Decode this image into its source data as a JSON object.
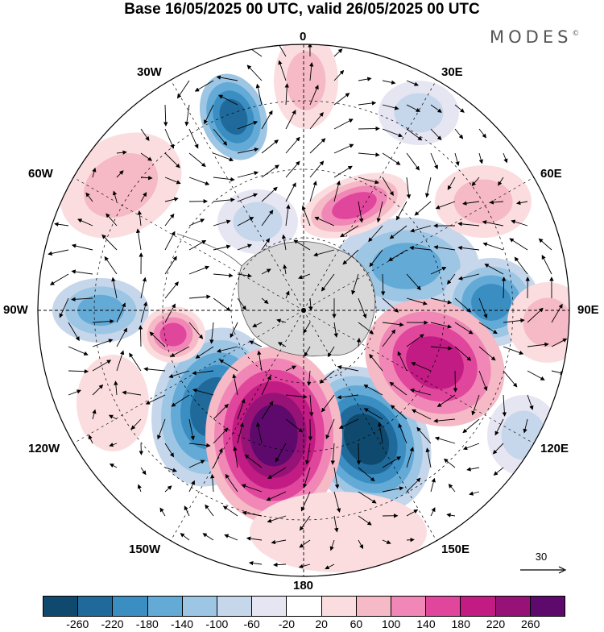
{
  "title": "Base 16/05/2025 00 UTC, valid 26/05/2025 00 UTC",
  "brand": "MODES",
  "brand_mark": "©",
  "map": {
    "projection": "south-polar-stereographic",
    "longitude_labels": {
      "top": "0",
      "top_right": "30E",
      "upper_right": "60E",
      "right": "90E",
      "lower_right": "120E",
      "bottom_right": "150E",
      "bottom": "180",
      "bottom_left": "150W",
      "lower_left": "120W",
      "left": "90W",
      "upper_left": "60W",
      "top_left": "30W"
    },
    "colors": {
      "positive_anomaly": "#e0388e",
      "negative_anomaly": "#3a8ec2",
      "neutral": "#ffffff",
      "land": "#d8d8d8"
    },
    "reference_vector": {
      "value": "30",
      "icon": "arrow-right-icon"
    }
  },
  "colorbar": {
    "colors": [
      "#0f4a6e",
      "#1f6a9a",
      "#3a8ec2",
      "#64aad6",
      "#9dc6e4",
      "#c6d6eb",
      "#e6e5f2",
      "#ffffff",
      "#fbdde0",
      "#f6b9c6",
      "#f087b6",
      "#e0469c",
      "#c21b84",
      "#971277",
      "#5d0a6c"
    ],
    "ticks": [
      "-260",
      "-220",
      "-180",
      "-140",
      "-100",
      "-60",
      "-20",
      "20",
      "60",
      "100",
      "140",
      "180",
      "220",
      "260"
    ]
  }
}
